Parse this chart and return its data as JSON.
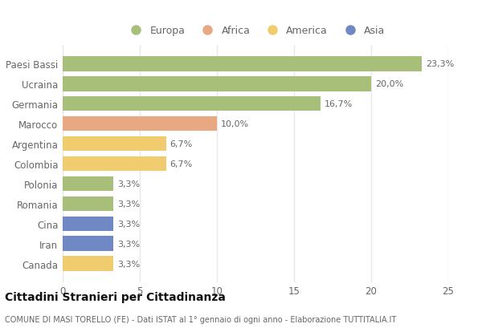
{
  "categories": [
    "Canada",
    "Iran",
    "Cina",
    "Romania",
    "Polonia",
    "Colombia",
    "Argentina",
    "Marocco",
    "Germania",
    "Ucraina",
    "Paesi Bassi"
  ],
  "values": [
    3.3,
    3.3,
    3.3,
    3.3,
    3.3,
    6.7,
    6.7,
    10.0,
    16.7,
    20.0,
    23.3
  ],
  "colors": [
    "#f0cc6e",
    "#7088c4",
    "#7088c4",
    "#a8bf7a",
    "#a8bf7a",
    "#f0cc6e",
    "#f0cc6e",
    "#e8a882",
    "#a8bf7a",
    "#a8bf7a",
    "#a8bf7a"
  ],
  "labels": [
    "3,3%",
    "3,3%",
    "3,3%",
    "3,3%",
    "3,3%",
    "6,7%",
    "6,7%",
    "10,0%",
    "16,7%",
    "20,0%",
    "23,3%"
  ],
  "legend": [
    {
      "label": "Europa",
      "color": "#a8bf7a"
    },
    {
      "label": "Africa",
      "color": "#e8a882"
    },
    {
      "label": "America",
      "color": "#f0cc6e"
    },
    {
      "label": "Asia",
      "color": "#7088c4"
    }
  ],
  "xlim": [
    0,
    25
  ],
  "xticks": [
    0,
    5,
    10,
    15,
    20,
    25
  ],
  "title": "Cittadini Stranieri per Cittadinanza",
  "subtitle": "COMUNE DI MASI TORELLO (FE) - Dati ISTAT al 1° gennaio di ogni anno - Elaborazione TUTTITALIA.IT",
  "bg_color": "#ffffff",
  "grid_color": "#e8e8e8",
  "label_color": "#666666",
  "title_color": "#111111",
  "subtitle_color": "#666666"
}
